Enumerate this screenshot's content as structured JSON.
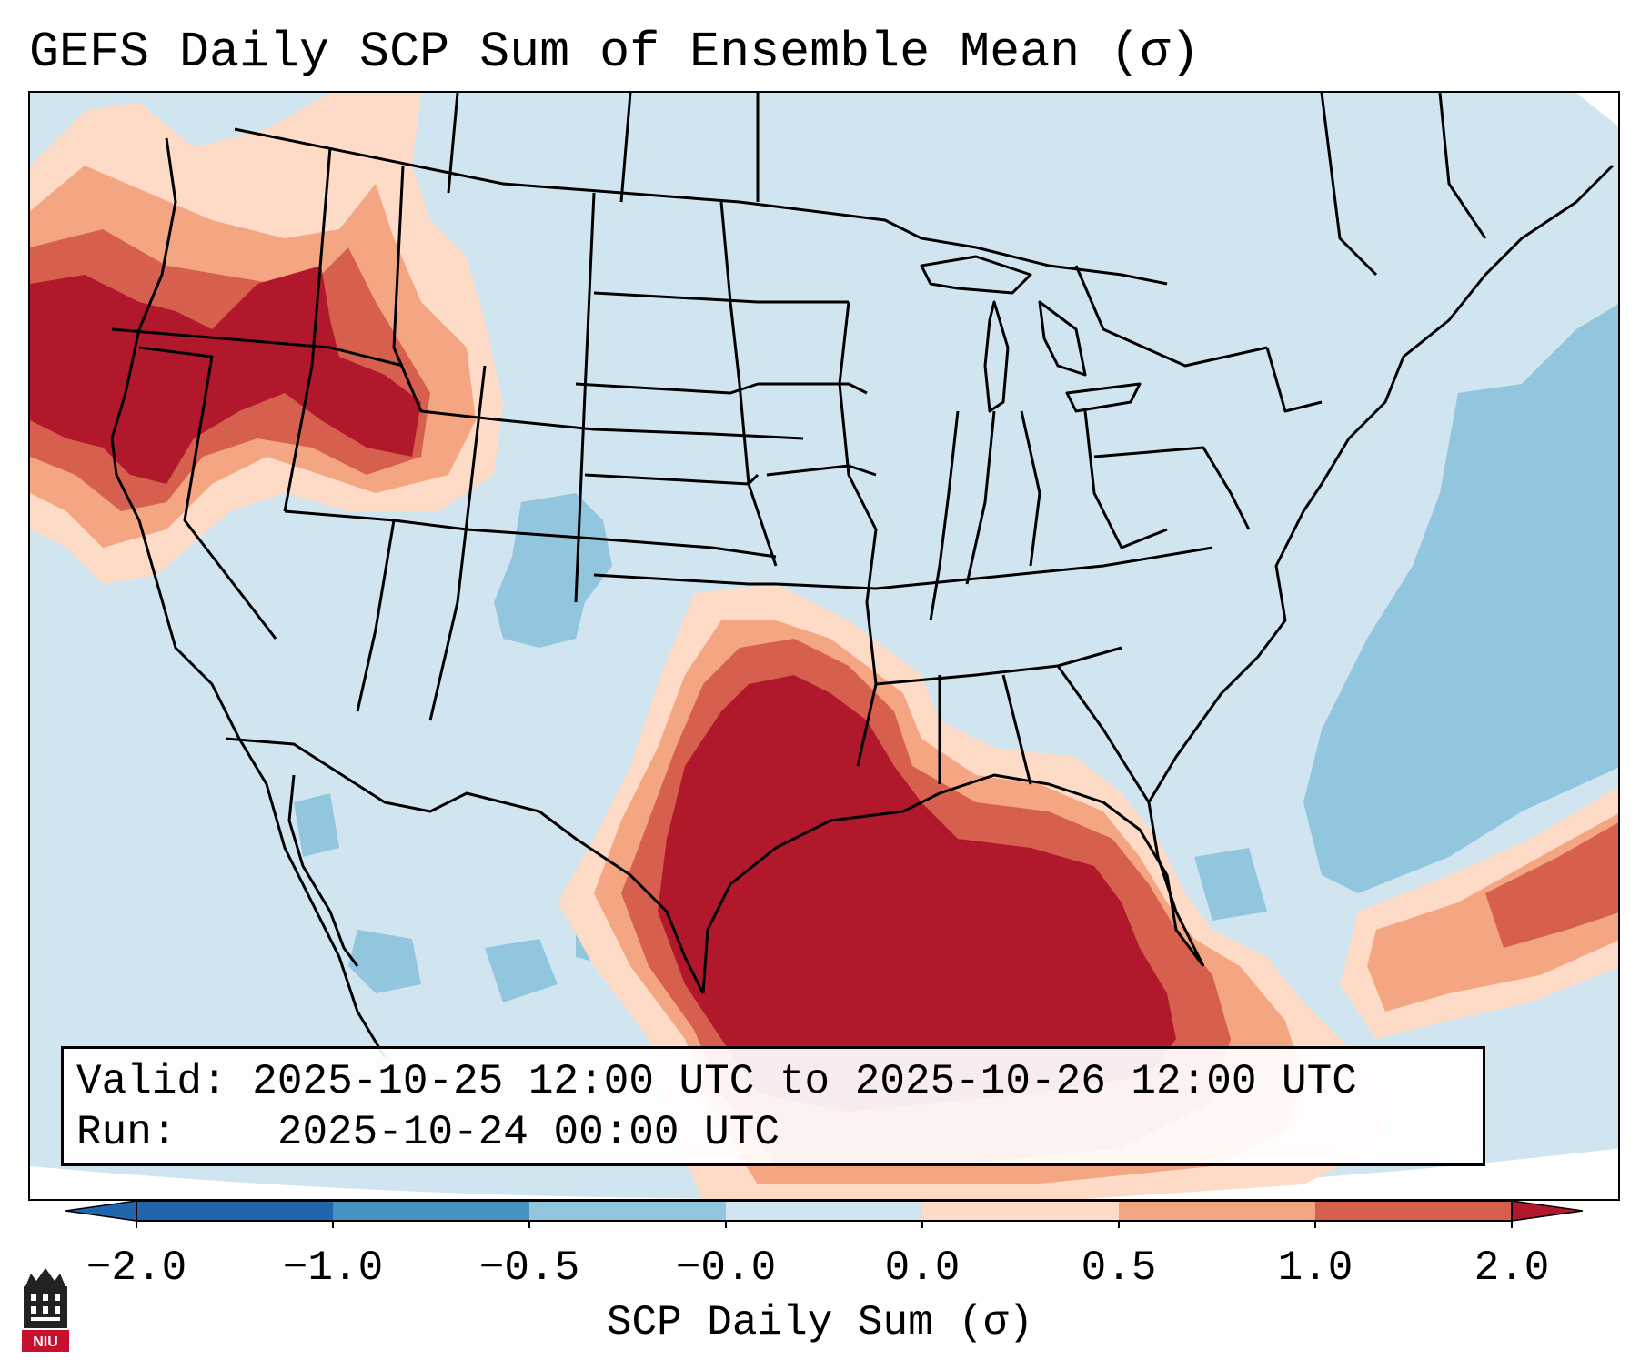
{
  "title": "GEFS Daily SCP Sum of Ensemble Mean (σ)",
  "map": {
    "region": "CONUS",
    "field": "SCP daily sum standardized anomaly",
    "features": [
      {
        "name": "Pacific Northwest",
        "level": "high"
      },
      {
        "name": "Southern Plains / Gulf Coast",
        "level": "high"
      },
      {
        "name": "Western Atlantic",
        "level": "moderate"
      },
      {
        "name": "Central Rockies",
        "level": "low"
      }
    ]
  },
  "info": {
    "valid_label": "Valid:",
    "valid_value": "2025-10-25 12:00 UTC to 2025-10-26 12:00 UTC",
    "run_label": "Run:",
    "run_value": "2025-10-24 00:00 UTC"
  },
  "colorbar": {
    "label": "SCP Daily Sum (σ)",
    "ticks": [
      "−2.0",
      "−1.0",
      "−0.5",
      "−0.0",
      "0.0",
      "0.5",
      "1.0",
      "2.0"
    ],
    "colors": [
      "#2166ac",
      "#4393c3",
      "#92c5de",
      "#d1e5f0",
      "#fddbc7",
      "#f4a582",
      "#d6604d",
      "#b2182b"
    ],
    "extend": "both"
  },
  "logo": {
    "text": "NIU"
  }
}
